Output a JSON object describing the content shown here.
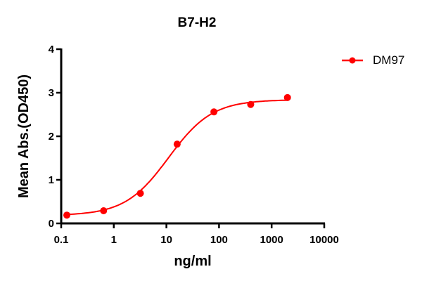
{
  "chart_data": {
    "type": "scatter",
    "title": "B7-H2",
    "xlabel": "ng/ml",
    "ylabel": "Mean Abs.(OD450)",
    "xscale": "log",
    "xlim": [
      0.1,
      10000
    ],
    "ylim": [
      0,
      4
    ],
    "x_ticks": [
      "0.1",
      "1",
      "10",
      "100",
      "1000",
      "10000"
    ],
    "y_ticks": [
      "0",
      "1",
      "2",
      "3",
      "4"
    ],
    "grid": false,
    "legend_position": "right-top",
    "series": [
      {
        "name": "DM97",
        "color": "#ff0000",
        "fit": "4-parameter logistic",
        "x": [
          0.128,
          0.64,
          3.2,
          16,
          80,
          400,
          2000
        ],
        "y": [
          0.19,
          0.29,
          0.69,
          1.82,
          2.56,
          2.73,
          2.89
        ]
      }
    ]
  }
}
